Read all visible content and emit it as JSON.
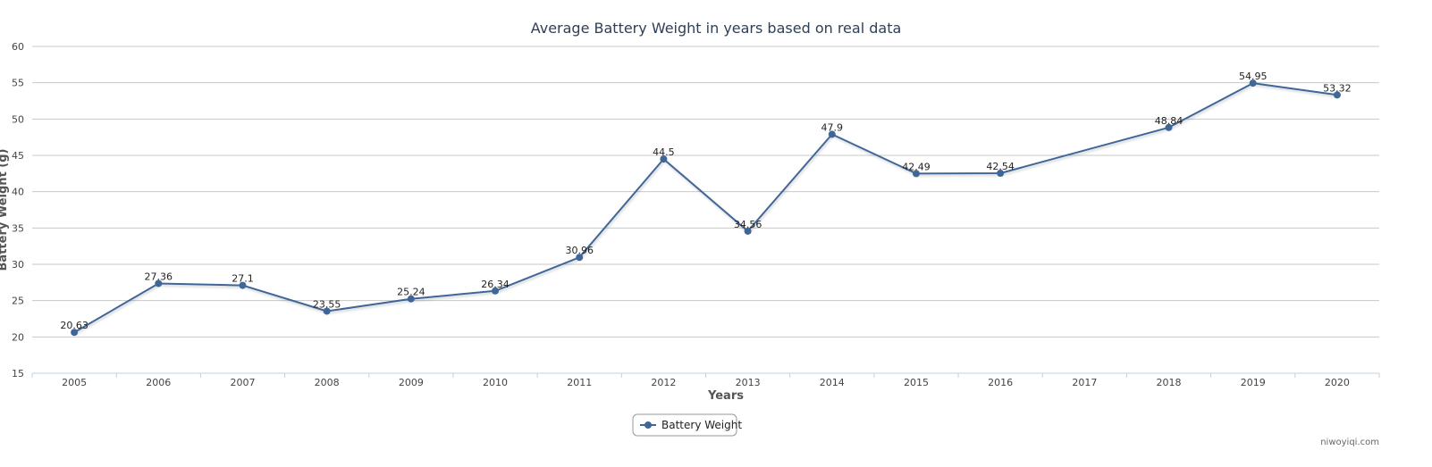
{
  "chart_data": {
    "type": "line",
    "title": "Average Battery Weight in years based on real data",
    "xlabel": "Years",
    "ylabel": "Battery Weight (g)",
    "categories": [
      "2005",
      "2006",
      "2007",
      "2008",
      "2009",
      "2010",
      "2011",
      "2012",
      "2013",
      "2014",
      "2015",
      "2016",
      "2017",
      "2018",
      "2019",
      "2020"
    ],
    "series": [
      {
        "name": "Battery Weight",
        "values": [
          20.63,
          27.36,
          27.1,
          23.55,
          25.24,
          26.34,
          30.96,
          44.5,
          34.56,
          47.9,
          42.49,
          42.54,
          null,
          48.84,
          54.95,
          53.32
        ],
        "labels": [
          "20.63",
          "27.36",
          "27.1",
          "23.55",
          "25.24",
          "26.34",
          "30.96",
          "44.5",
          "34.56",
          "47.9",
          "42.49",
          "42.54",
          "",
          "48.84",
          "54.95",
          "53.32"
        ],
        "color": "#3f6698"
      }
    ],
    "ylim": [
      15,
      60
    ],
    "yticks": [
      "15",
      "20",
      "25",
      "30",
      "35",
      "40",
      "45",
      "50",
      "55",
      "60"
    ],
    "grid": true,
    "legend": "bottom-center",
    "credit": "niwoyiqi.com"
  }
}
